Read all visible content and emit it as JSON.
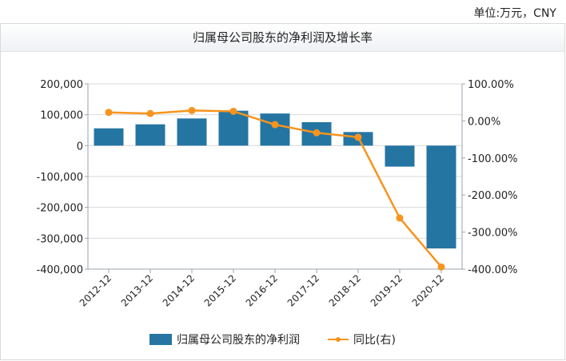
{
  "header": {
    "unit_label": "单位:万元，CNY"
  },
  "colors": {
    "bar": "#2575a3",
    "line": "#f7941d",
    "grid": "#d9d9d9",
    "axis": "#9aa3ab",
    "text": "#222222"
  },
  "chart_data": {
    "type": "bar",
    "title": "归属母公司股东的净利润及增长率",
    "categories": [
      "2012-12",
      "2013-12",
      "2014-12",
      "2015-12",
      "2016-12",
      "2017-12",
      "2018-12",
      "2019-12",
      "2020-12"
    ],
    "series": [
      {
        "name": "归属母公司股东的净利润",
        "type": "bar",
        "axis": "left",
        "values": [
          56000,
          69000,
          88000,
          113000,
          104000,
          76000,
          44000,
          -68000,
          -333000
        ]
      },
      {
        "name": "同比(右)",
        "type": "line",
        "axis": "right",
        "values": [
          23,
          20,
          28,
          26,
          -10,
          -32,
          -44,
          -262,
          -394
        ]
      }
    ],
    "y_left": {
      "ylim": [
        -400000,
        200000
      ],
      "ticks": [
        200000,
        100000,
        0,
        -100000,
        -200000,
        -300000,
        -400000
      ],
      "tick_labels": [
        "200,000",
        "100,000",
        "0",
        "-100,000",
        "-200,000",
        "-300,000",
        "-400,000"
      ]
    },
    "y_right": {
      "ylim": [
        -400,
        100
      ],
      "ticks": [
        100,
        0,
        -100,
        -200,
        -300,
        -400
      ],
      "tick_labels": [
        "100.00%",
        "0.00%",
        "-100.00%",
        "-200.00%",
        "-300.00%",
        "-400.00%"
      ]
    },
    "grid": true,
    "legend_position": "bottom"
  }
}
